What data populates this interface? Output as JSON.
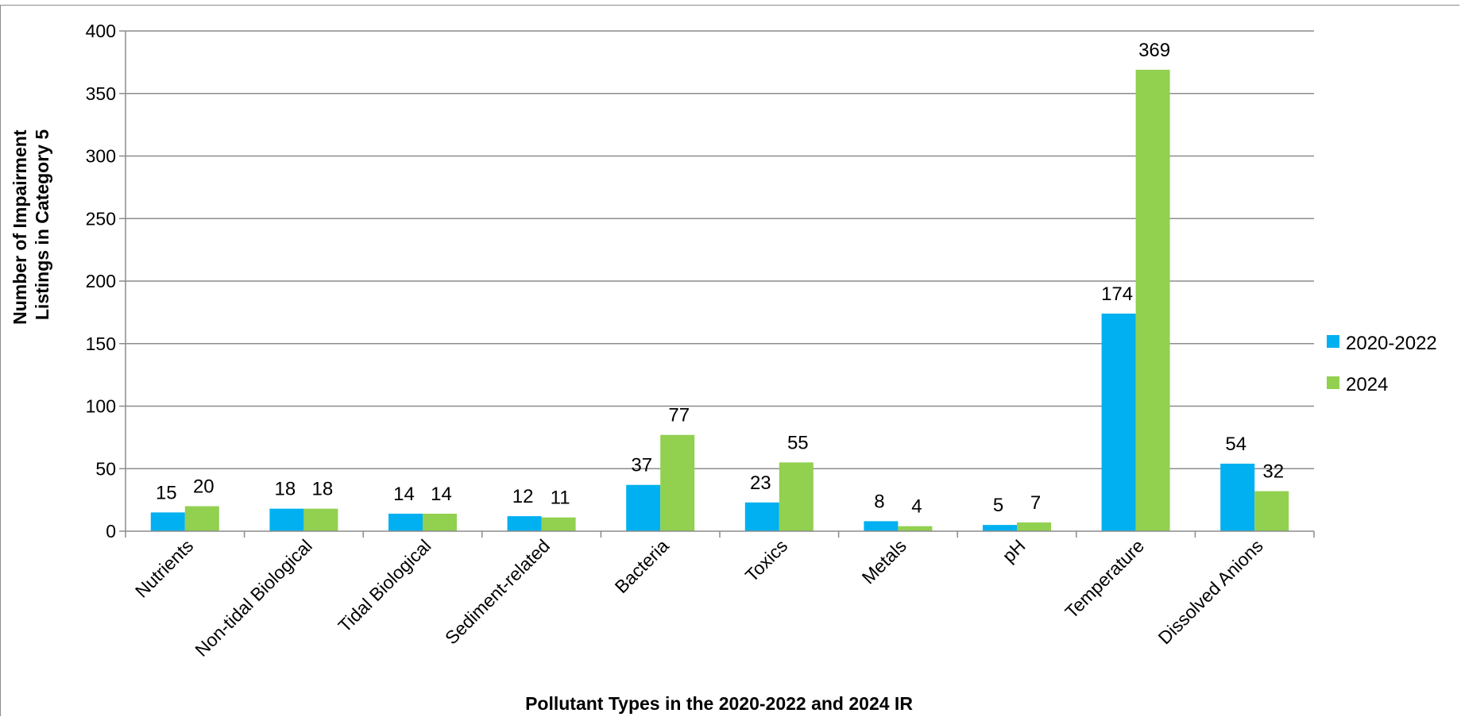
{
  "chart_data": {
    "type": "bar",
    "title": "",
    "xlabel": "Pollutant Types in the 2020-2022 and 2024 IR",
    "ylabel_lines": [
      "Number of Impairment",
      "Listings in Category 5"
    ],
    "ylim": [
      0,
      400
    ],
    "yticks": [
      0,
      50,
      100,
      150,
      200,
      250,
      300,
      350,
      400
    ],
    "grid": true,
    "legend_position": "right",
    "categories": [
      "Nutrients",
      "Non-tidal Biological",
      "Tidal Biological",
      "Sediment-related",
      "Bacteria",
      "Toxics",
      "Metals",
      "pH",
      "Temperature",
      "Dissolved Anions"
    ],
    "series": [
      {
        "name": "2020-2022",
        "color": "#00b0f0",
        "values": [
          15,
          18,
          14,
          12,
          37,
          23,
          8,
          5,
          174,
          54
        ]
      },
      {
        "name": "2024",
        "color": "#92d050",
        "values": [
          20,
          18,
          14,
          11,
          77,
          55,
          4,
          7,
          369,
          32
        ]
      }
    ]
  }
}
